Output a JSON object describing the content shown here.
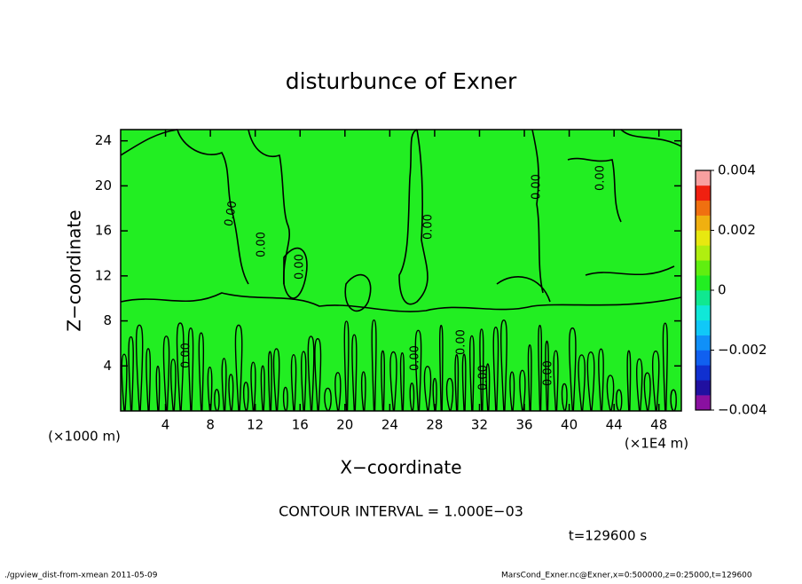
{
  "chart_data": {
    "type": "contour",
    "title": "disturbunce of Exner",
    "x_label": "X−coordinate",
    "y_label": "Z−coordinate",
    "x_unit": "(×1E4 m)",
    "y_unit": "(×1000 m)",
    "xlim": [
      0,
      50
    ],
    "xticks": [
      4,
      8,
      12,
      16,
      20,
      24,
      28,
      32,
      36,
      40,
      44,
      48
    ],
    "ylim": [
      0,
      25
    ],
    "yticks": [
      4,
      8,
      12,
      16,
      20,
      24
    ],
    "contour_label": "0.00",
    "field_color": "#22ee22",
    "clim": [
      -0.004,
      0.004
    ],
    "colorbar_ticks": [
      0.004,
      0.002,
      0,
      {
        "value": -0.002,
        "label": "−0.002"
      },
      {
        "value": -0.004,
        "label": "−0.004"
      }
    ],
    "colorbar_colors": [
      "#8a10a0",
      "#2010a0",
      "#1030d0",
      "#1060f0",
      "#1090f8",
      "#10c8f8",
      "#10e8d8",
      "#10e890",
      "#22ee22",
      "#60ee10",
      "#b0ee10",
      "#e8e810",
      "#f0b010",
      "#f07010",
      "#f02010",
      "#f8a0a0"
    ],
    "contour_interval": "CONTOUR INTERVAL = 1.000E−03",
    "time": "t=129600  s",
    "footer_left": "./gpview_dist-from-xmean  2011-05-09",
    "footer_right": "MarsCond_Exner.nc@Exner,x=0:500000,z=0:25000,t=129600"
  }
}
